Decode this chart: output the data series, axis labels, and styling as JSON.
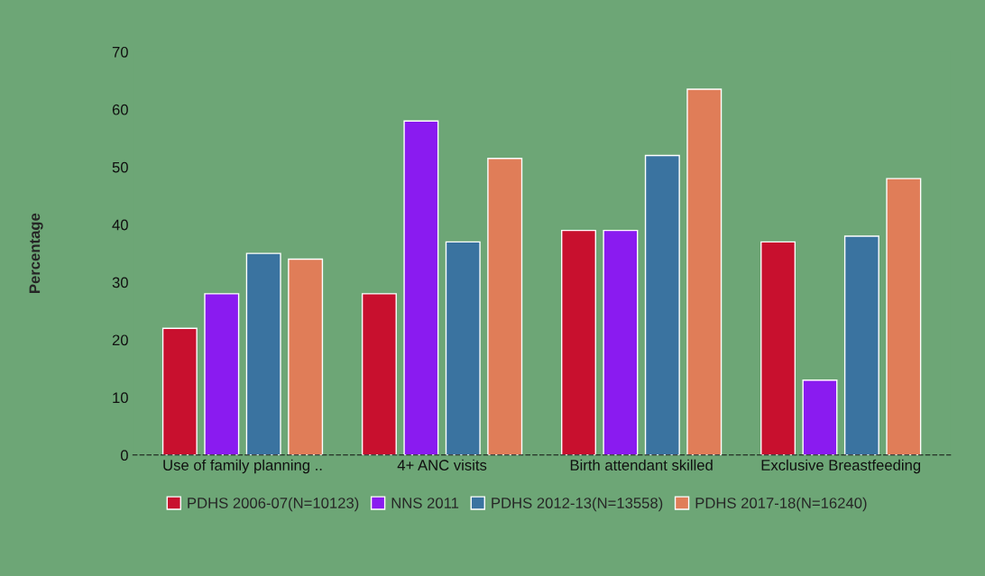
{
  "chart_data": {
    "type": "bar",
    "ylabel": "Percentage",
    "categories": [
      "Use of family planning ..",
      "4+ ANC visits",
      "Birth attendant skilled",
      "Exclusive Breastfeeding"
    ],
    "series": [
      {
        "name": "PDHS 2006-07(N=10123)",
        "color": "#c8102e",
        "values": [
          22,
          28,
          39,
          37
        ]
      },
      {
        "name": "NNS 2011",
        "color": "#8a1bf0",
        "values": [
          28,
          58,
          39,
          13
        ]
      },
      {
        "name": "PDHS 2012-13(N=13558)",
        "color": "#3a73a0",
        "values": [
          35,
          37,
          52,
          38
        ]
      },
      {
        "name": "PDHS 2017-18(N=16240)",
        "color": "#e07d58",
        "values": [
          34,
          51.5,
          63.5,
          48
        ]
      }
    ],
    "ylim": [
      0,
      70
    ],
    "yticks": [
      0,
      10,
      20,
      30,
      40,
      50,
      60,
      70
    ],
    "grid": false,
    "legend": "bottom"
  }
}
